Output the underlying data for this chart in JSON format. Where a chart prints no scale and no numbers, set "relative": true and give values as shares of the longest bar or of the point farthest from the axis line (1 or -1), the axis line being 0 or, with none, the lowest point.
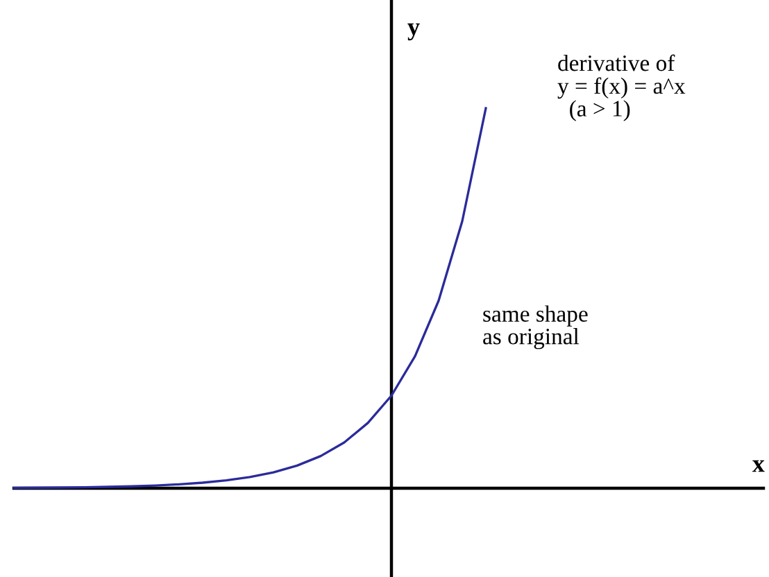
{
  "chart_data": {
    "type": "line",
    "relative": true,
    "ylabel": "y",
    "categories": [
      null,
      null,
      null,
      null,
      null,
      null,
      null,
      null,
      null,
      null,
      null,
      null,
      null,
      null,
      null,
      null,
      null,
      null,
      null,
      null,
      null
    ],
    "series": [
      {
        "color": "#2b2b9b",
        "values": [
          0.0009,
          0.0013,
          0.0018,
          0.0026,
          0.0036,
          0.005,
          0.0072,
          0.0103,
          0.0146,
          0.0206,
          0.0295,
          0.0419,
          0.0596,
          0.0847,
          0.1205,
          0.1718,
          0.2436,
          0.3474,
          0.4936,
          0.7026,
          1
        ]
      }
    ],
    "annotations": [
      "derivative of\ny = f(x) = a^x\n  (a > 1)",
      "same shape\nas original",
      "x"
    ],
    "marker": "none",
    "line_style": "solid"
  }
}
